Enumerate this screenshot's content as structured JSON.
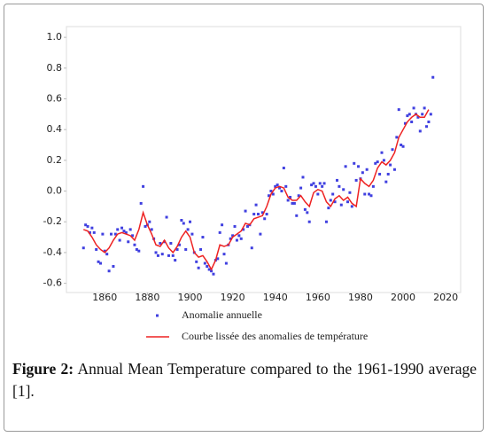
{
  "chart_data": {
    "type": "scatter-line",
    "series": [
      {
        "name": "Anomalie annuelle",
        "kind": "scatter",
        "color": "#4040e0",
        "x": [
          1850,
          1851,
          1852,
          1853,
          1854,
          1855,
          1856,
          1857,
          1858,
          1859,
          1860,
          1861,
          1862,
          1863,
          1864,
          1865,
          1866,
          1867,
          1868,
          1869,
          1870,
          1871,
          1872,
          1873,
          1874,
          1875,
          1876,
          1877,
          1878,
          1879,
          1880,
          1881,
          1882,
          1883,
          1884,
          1885,
          1886,
          1887,
          1888,
          1889,
          1890,
          1891,
          1892,
          1893,
          1894,
          1895,
          1896,
          1897,
          1898,
          1899,
          1900,
          1901,
          1902,
          1903,
          1904,
          1905,
          1906,
          1907,
          1908,
          1909,
          1910,
          1911,
          1912,
          1913,
          1914,
          1915,
          1916,
          1917,
          1918,
          1919,
          1920,
          1921,
          1922,
          1923,
          1924,
          1925,
          1926,
          1927,
          1928,
          1929,
          1930,
          1931,
          1932,
          1933,
          1934,
          1935,
          1936,
          1937,
          1938,
          1939,
          1940,
          1941,
          1942,
          1943,
          1944,
          1945,
          1946,
          1947,
          1948,
          1949,
          1950,
          1951,
          1952,
          1953,
          1954,
          1955,
          1956,
          1957,
          1958,
          1959,
          1960,
          1961,
          1962,
          1963,
          1964,
          1965,
          1966,
          1967,
          1968,
          1969,
          1970,
          1971,
          1972,
          1973,
          1974,
          1975,
          1976,
          1977,
          1978,
          1979,
          1980,
          1981,
          1982,
          1983,
          1984,
          1985,
          1986,
          1987,
          1988,
          1989,
          1990,
          1991,
          1992,
          1993,
          1994,
          1995,
          1996,
          1997,
          1998,
          1999,
          2000,
          2001,
          2002,
          2003,
          2004,
          2005,
          2006,
          2007,
          2008,
          2009,
          2010,
          2011,
          2012,
          2013,
          2014
        ],
        "values": [
          -0.37,
          -0.22,
          -0.23,
          -0.27,
          -0.24,
          -0.27,
          -0.38,
          -0.46,
          -0.47,
          -0.28,
          -0.39,
          -0.41,
          -0.52,
          -0.28,
          -0.49,
          -0.28,
          -0.25,
          -0.32,
          -0.24,
          -0.26,
          -0.27,
          -0.33,
          -0.25,
          -0.29,
          -0.35,
          -0.38,
          -0.39,
          -0.08,
          0.03,
          -0.23,
          -0.22,
          -0.2,
          -0.25,
          -0.31,
          -0.4,
          -0.42,
          -0.34,
          -0.41,
          -0.33,
          -0.17,
          -0.42,
          -0.34,
          -0.42,
          -0.45,
          -0.38,
          -0.35,
          -0.19,
          -0.21,
          -0.38,
          -0.25,
          -0.2,
          -0.28,
          -0.4,
          -0.46,
          -0.5,
          -0.38,
          -0.3,
          -0.47,
          -0.49,
          -0.51,
          -0.52,
          -0.54,
          -0.45,
          -0.44,
          -0.27,
          -0.22,
          -0.41,
          -0.47,
          -0.35,
          -0.31,
          -0.29,
          -0.23,
          -0.32,
          -0.29,
          -0.31,
          -0.25,
          -0.13,
          -0.23,
          -0.22,
          -0.37,
          -0.15,
          -0.09,
          -0.15,
          -0.28,
          -0.14,
          -0.18,
          -0.15,
          -0.03,
          0.0,
          -0.02,
          0.03,
          0.04,
          0.02,
          0.0,
          0.15,
          0.03,
          -0.06,
          -0.04,
          -0.08,
          -0.08,
          -0.16,
          -0.03,
          0.02,
          0.09,
          -0.12,
          -0.14,
          -0.2,
          0.04,
          0.05,
          0.03,
          -0.02,
          0.05,
          0.03,
          0.05,
          -0.2,
          -0.11,
          -0.06,
          -0.02,
          -0.07,
          0.07,
          0.03,
          -0.09,
          0.01,
          0.16,
          -0.07,
          -0.01,
          -0.1,
          0.18,
          0.07,
          0.16,
          0.08,
          0.12,
          -0.02,
          0.14,
          -0.02,
          -0.03,
          0.03,
          0.18,
          0.19,
          0.11,
          0.25,
          0.2,
          0.06,
          0.11,
          0.17,
          0.27,
          0.14,
          0.35,
          0.53,
          0.3,
          0.29,
          0.44,
          0.49,
          0.5,
          0.45,
          0.54,
          0.5,
          0.48,
          0.39,
          0.5,
          0.54,
          0.42,
          0.45,
          0.5,
          0.74
        ]
      },
      {
        "name": "Courbe lissée des anomalies de température",
        "kind": "line",
        "color": "#ee2222",
        "x": [
          1850,
          1852,
          1854,
          1856,
          1858,
          1860,
          1862,
          1864,
          1866,
          1868,
          1870,
          1872,
          1874,
          1876,
          1878,
          1880,
          1882,
          1884,
          1886,
          1888,
          1890,
          1892,
          1894,
          1896,
          1898,
          1900,
          1902,
          1904,
          1906,
          1908,
          1910,
          1912,
          1914,
          1916,
          1918,
          1920,
          1922,
          1924,
          1926,
          1928,
          1930,
          1932,
          1934,
          1936,
          1938,
          1940,
          1942,
          1944,
          1946,
          1948,
          1950,
          1952,
          1954,
          1956,
          1958,
          1960,
          1962,
          1964,
          1966,
          1968,
          1970,
          1972,
          1974,
          1976,
          1978,
          1980,
          1982,
          1984,
          1986,
          1988,
          1990,
          1992,
          1994,
          1996,
          1998,
          2000,
          2002,
          2004,
          2006,
          2008,
          2010,
          2012
        ],
        "values": [
          -0.25,
          -0.26,
          -0.3,
          -0.35,
          -0.38,
          -0.4,
          -0.37,
          -0.32,
          -0.28,
          -0.27,
          -0.28,
          -0.29,
          -0.32,
          -0.25,
          -0.14,
          -0.22,
          -0.28,
          -0.35,
          -0.36,
          -0.32,
          -0.37,
          -0.4,
          -0.36,
          -0.3,
          -0.26,
          -0.3,
          -0.4,
          -0.43,
          -0.42,
          -0.46,
          -0.51,
          -0.45,
          -0.35,
          -0.36,
          -0.35,
          -0.3,
          -0.28,
          -0.26,
          -0.21,
          -0.22,
          -0.18,
          -0.17,
          -0.16,
          -0.1,
          -0.02,
          0.02,
          0.03,
          0.02,
          -0.04,
          -0.06,
          -0.06,
          -0.03,
          -0.07,
          -0.1,
          -0.01,
          0.01,
          0.0,
          -0.07,
          -0.1,
          -0.05,
          -0.03,
          -0.06,
          -0.04,
          -0.08,
          -0.1,
          0.08,
          0.05,
          0.03,
          0.07,
          0.15,
          0.19,
          0.17,
          0.2,
          0.25,
          0.35,
          0.4,
          0.45,
          0.48,
          0.5,
          0.48,
          0.48,
          0.53
        ]
      }
    ],
    "xlim": [
      1842,
      2027
    ],
    "xticks": [
      1860,
      1880,
      1900,
      1920,
      1940,
      1960,
      1980,
      2000,
      2020
    ],
    "ylim": [
      -0.66,
      1.07
    ],
    "yticks": [
      -0.6,
      -0.4,
      -0.2,
      {
        "value": 0,
        "label": "0.0"
      },
      0.2,
      0.4,
      0.6,
      0.8,
      {
        "value": 1,
        "label": "1.0"
      }
    ],
    "grid": false
  },
  "caption": {
    "label": "Figure 2:",
    "text": "Annual Mean Temperature compared to the 1961-1990 average [1]."
  }
}
